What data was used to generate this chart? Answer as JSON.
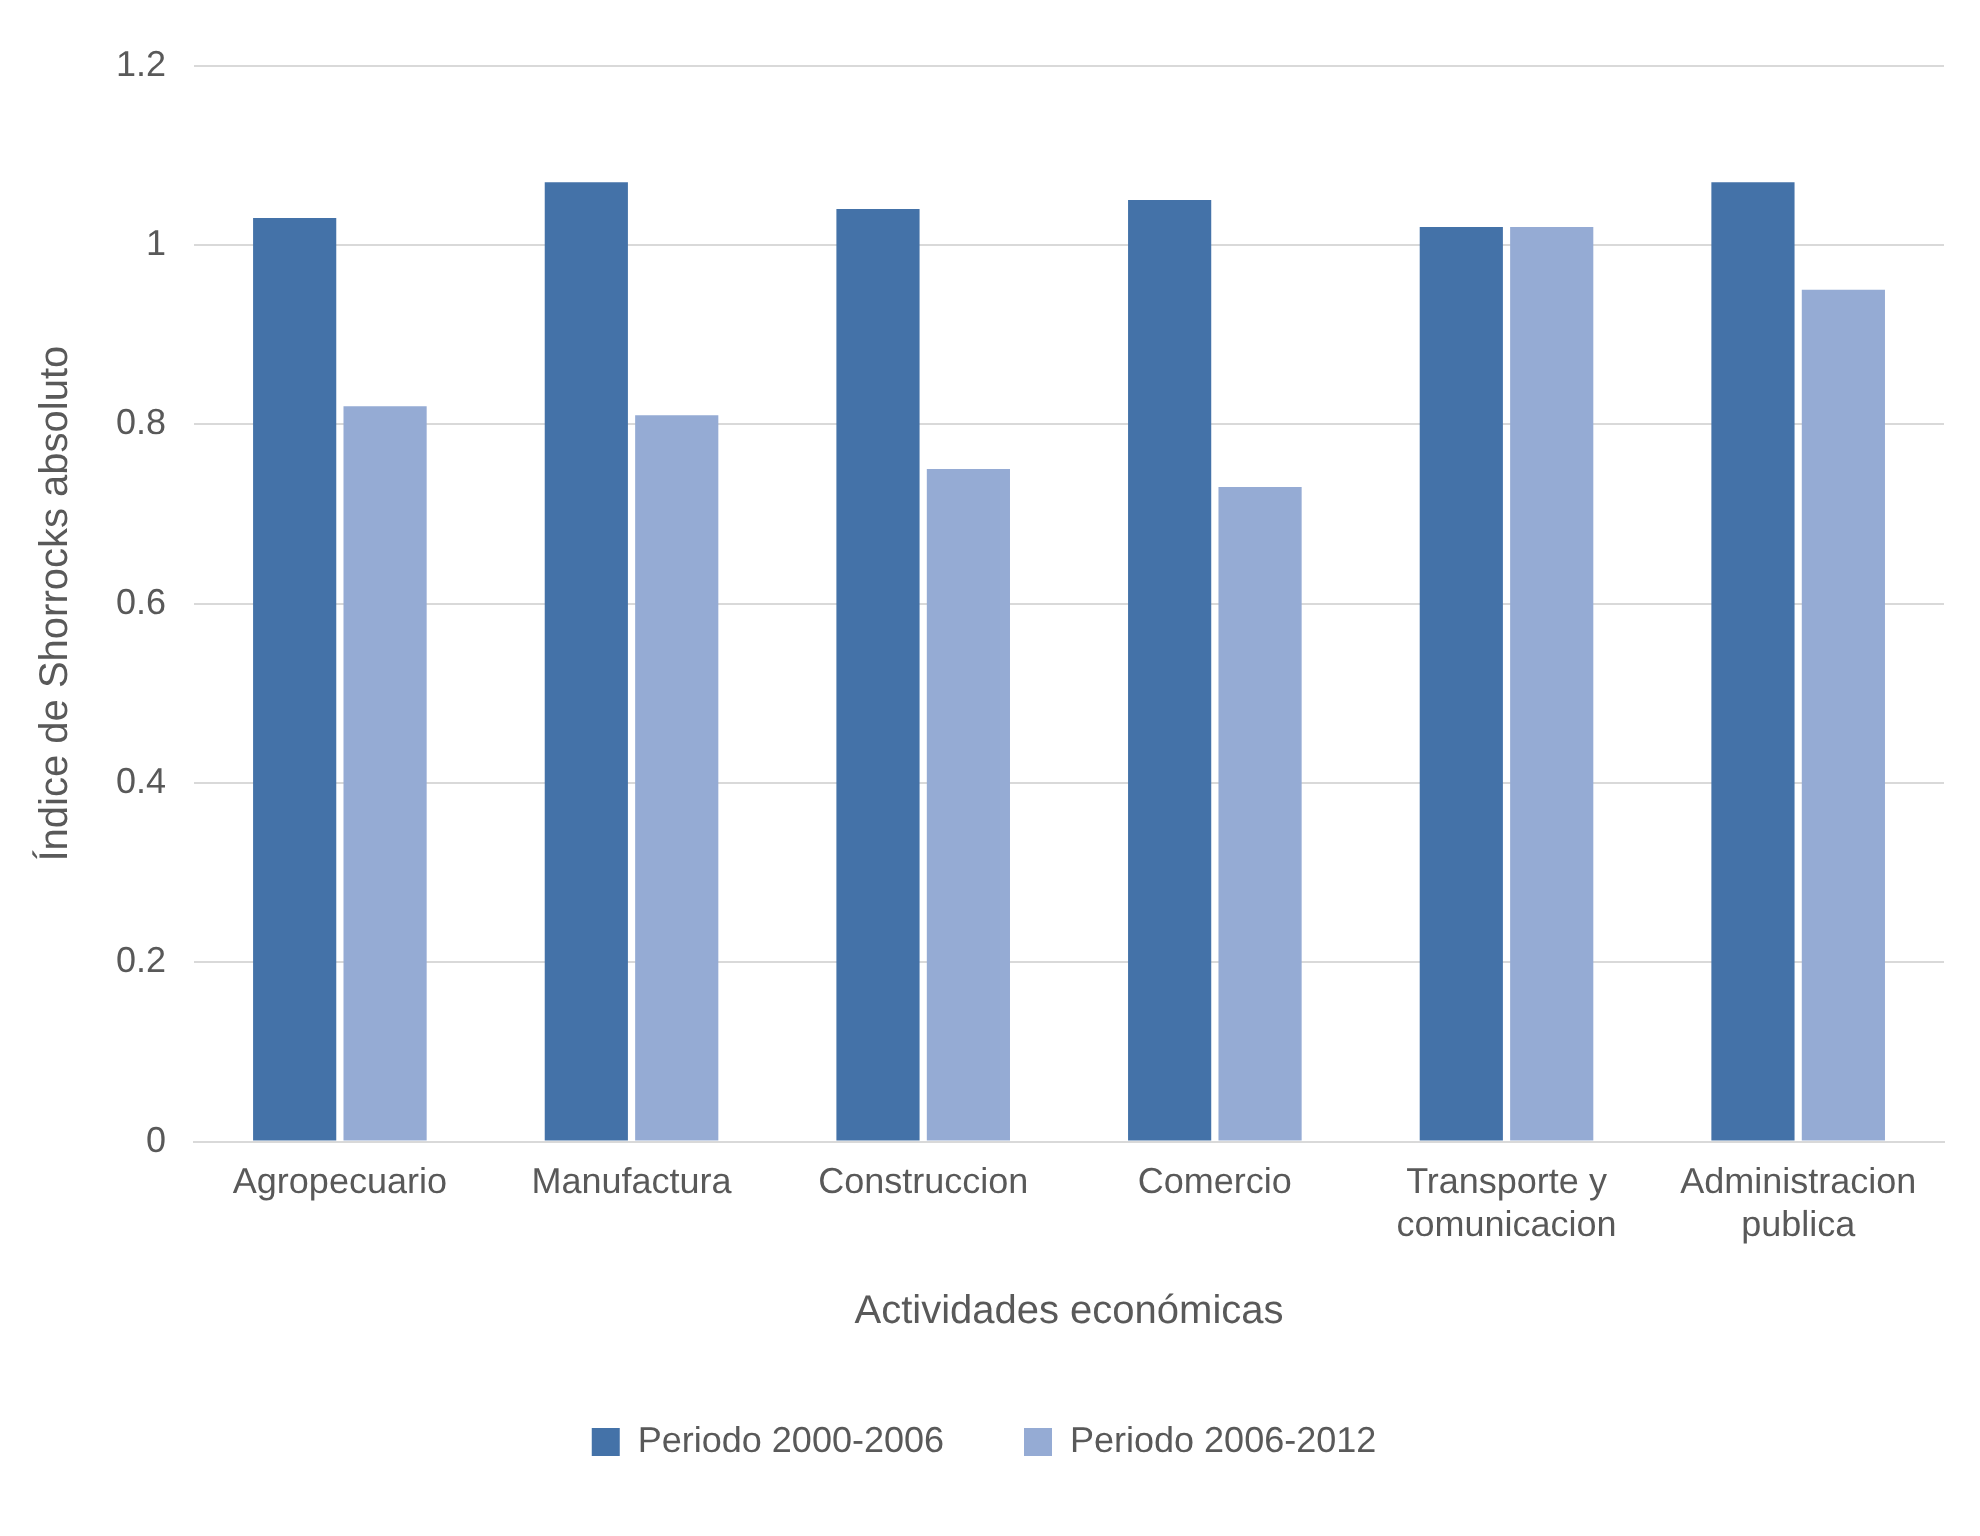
{
  "chart_data": {
    "type": "bar",
    "xlabel": "Actividades económicas",
    "ylabel": "Índice de Shorrocks absoluto",
    "categories": [
      "Agropecuario",
      "Manufactura",
      "Construccion",
      "Comercio",
      "Transporte y comunicacion",
      "Administracion publica"
    ],
    "series": [
      {
        "name": "Periodo 2000-2006",
        "color": "#4472a8",
        "values": [
          1.03,
          1.07,
          1.04,
          1.05,
          1.02,
          1.07
        ]
      },
      {
        "name": "Periodo 2006-2012",
        "color": "#95abd4",
        "values": [
          0.82,
          0.81,
          0.75,
          0.73,
          1.02,
          0.95
        ]
      }
    ],
    "ylim": [
      0,
      1.2
    ],
    "yticks": [
      0,
      0.2,
      0.4,
      0.6,
      0.8,
      1,
      1.2
    ],
    "grid": "y",
    "legend": "bottom"
  }
}
